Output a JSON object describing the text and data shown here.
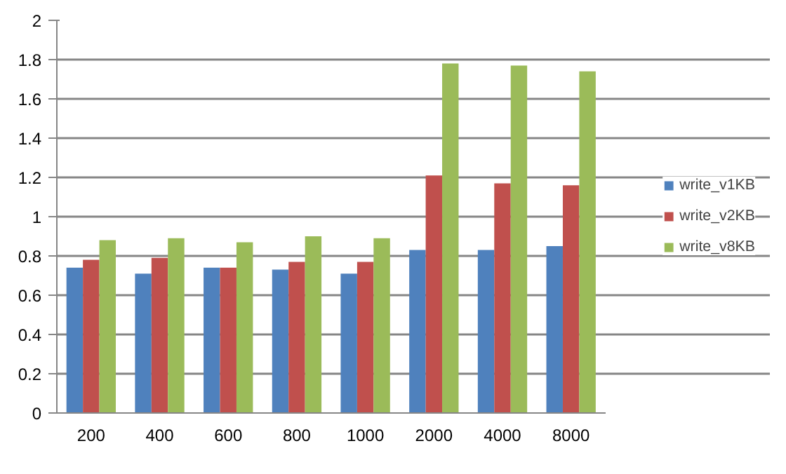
{
  "chart_data": {
    "type": "bar",
    "categories": [
      "200",
      "400",
      "600",
      "800",
      "1000",
      "2000",
      "4000",
      "8000"
    ],
    "series": [
      {
        "name": "write_v1KB",
        "color": "#4f81bd",
        "values": [
          0.74,
          0.71,
          0.74,
          0.73,
          0.71,
          0.83,
          0.83,
          0.85
        ]
      },
      {
        "name": "write_v2KB",
        "color": "#c0504d",
        "values": [
          0.78,
          0.79,
          0.74,
          0.77,
          0.77,
          1.21,
          1.17,
          1.16
        ]
      },
      {
        "name": "write_v8KB",
        "color": "#9bbb59",
        "values": [
          0.88,
          0.89,
          0.87,
          0.9,
          0.89,
          1.78,
          1.77,
          1.74
        ]
      }
    ],
    "ylim": [
      0,
      2
    ],
    "yticks": [
      0,
      0.2,
      0.4,
      0.6,
      0.8,
      1,
      1.2,
      1.4,
      1.6,
      1.8,
      2
    ],
    "grid": "y",
    "legend": "right"
  }
}
